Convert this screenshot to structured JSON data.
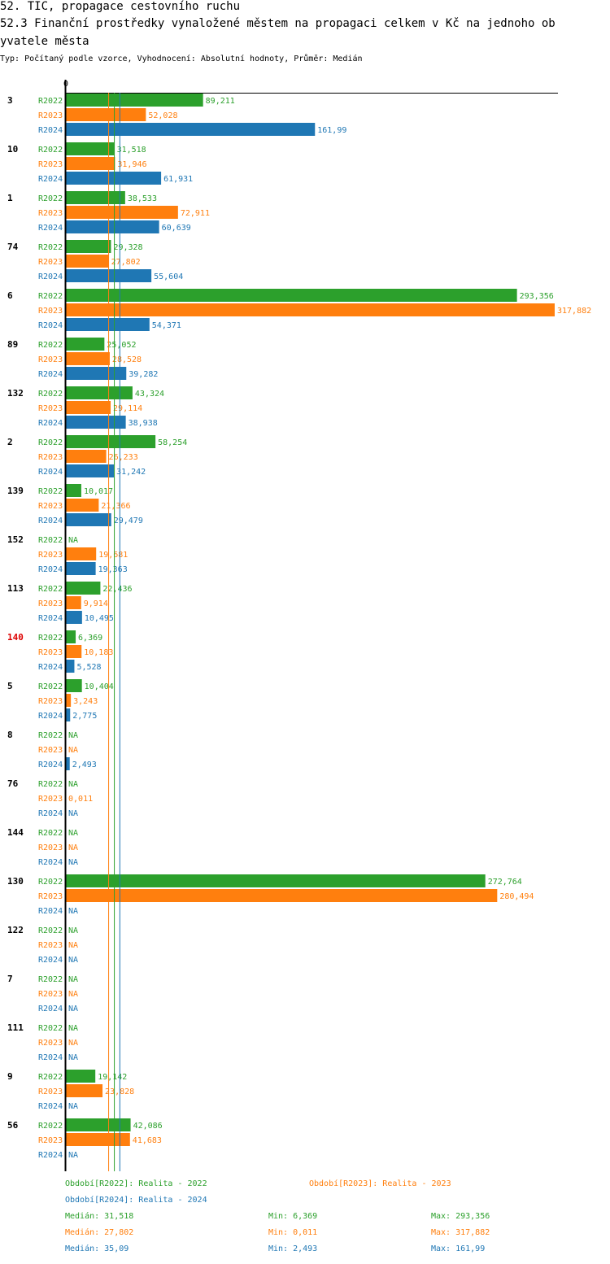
{
  "page": {
    "title_line1": "52. TIC, propagace cestovního ruchu",
    "title_line2": "52.3 Finanční prostředky vynaložené městem na propagaci celkem v Kč na jednoho ob",
    "title_line3": "yvatele města",
    "subtitle": "Typ: Počítaný podle vzorce, Vyhodnocení: Absolutní hodnoty, Průměr: Medián"
  },
  "colors": {
    "R2022": "#2ca02c",
    "R2023": "#ff7f0e",
    "R2024": "#1f77b4",
    "highlight": "#dd0000"
  },
  "legend": {
    "r2022": "Období[R2022]: Realita - 2022",
    "r2023": "Období[R2023]: Realita - 2023",
    "r2024": "Období[R2024]: Realita - 2024"
  },
  "stats": {
    "r2022": {
      "median": "Medián: 31,518",
      "min": "Min: 6,369",
      "max": "Max: 293,356"
    },
    "r2023": {
      "median": "Medián: 27,802",
      "min": "Min: 0,011",
      "max": "Max: 317,882"
    },
    "r2024": {
      "median": "Medián: 35,09",
      "min": "Min: 2,493",
      "max": "Max: 161,99"
    }
  },
  "chart_data": {
    "type": "bar",
    "orientation": "horizontal",
    "axis_zero_label": "0",
    "xlim": [
      0,
      317.882
    ],
    "series_names": [
      "R2022",
      "R2023",
      "R2024"
    ],
    "medians": [
      31.518,
      27.802,
      35.09
    ],
    "highlighted_category": "140",
    "categories": [
      "3",
      "10",
      "1",
      "74",
      "6",
      "89",
      "132",
      "2",
      "139",
      "152",
      "113",
      "140",
      "5",
      "8",
      "76",
      "144",
      "130",
      "122",
      "7",
      "111",
      "9",
      "56"
    ],
    "series": [
      {
        "name": "R2022",
        "values": [
          89.211,
          31.518,
          38.533,
          29.328,
          293.356,
          25.052,
          43.324,
          58.254,
          10.017,
          null,
          22.436,
          6.369,
          10.404,
          null,
          null,
          null,
          272.764,
          null,
          null,
          null,
          19.142,
          42.086
        ],
        "labels": [
          "89,211",
          "31,518",
          "38,533",
          "29,328",
          "293,356",
          "25,052",
          "43,324",
          "58,254",
          "10,017",
          "NA",
          "22,436",
          "6,369",
          "10,404",
          "NA",
          "NA",
          "NA",
          "272,764",
          "NA",
          "NA",
          "NA",
          "19,142",
          "42,086"
        ]
      },
      {
        "name": "R2023",
        "values": [
          52.028,
          31.946,
          72.911,
          27.802,
          317.882,
          28.528,
          29.114,
          26.233,
          21.366,
          19.681,
          9.914,
          10.183,
          3.243,
          null,
          0.011,
          null,
          280.494,
          null,
          null,
          null,
          23.828,
          41.683
        ],
        "labels": [
          "52,028",
          "31,946",
          "72,911",
          "27,802",
          "317,882",
          "28,528",
          "29,114",
          "26,233",
          "21,366",
          "19,681",
          "9,914",
          "10,183",
          "3,243",
          "NA",
          "0,011",
          "NA",
          "280,494",
          "NA",
          "NA",
          "NA",
          "23,828",
          "41,683"
        ]
      },
      {
        "name": "R2024",
        "values": [
          161.99,
          61.931,
          60.639,
          55.604,
          54.371,
          39.282,
          38.938,
          31.242,
          29.479,
          19.363,
          10.495,
          5.528,
          2.775,
          2.493,
          null,
          null,
          null,
          null,
          null,
          null,
          null,
          null
        ],
        "labels": [
          "161,99",
          "61,931",
          "60,639",
          "55,604",
          "54,371",
          "39,282",
          "38,938",
          "31,242",
          "29,479",
          "19,363",
          "10,495",
          "5,528",
          "2,775",
          "2,493",
          "NA",
          "NA",
          "NA",
          "NA",
          "NA",
          "NA",
          "NA",
          "NA"
        ]
      }
    ]
  }
}
